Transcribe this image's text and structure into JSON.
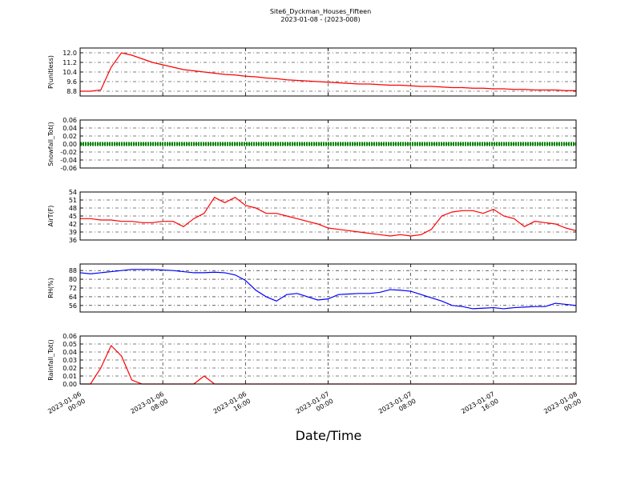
{
  "title": "Site6_Dyckman_Houses_Fifteen",
  "subtitle": "2023-01-08 - (2023-008)",
  "xlabel": "Date/Time",
  "xlim": [
    "2023-01-06 00:00",
    "2023-01-08 00:00"
  ],
  "xticks": [
    "2023-01-06 00:00",
    "2023-01-06 08:00",
    "2023-01-06 16:00",
    "2023-01-07 00:00",
    "2023-01-07 08:00",
    "2023-01-07 16:00",
    "2023-01-08 00:00"
  ],
  "x": [
    "2023-01-06 00:00",
    "2023-01-06 01:00",
    "2023-01-06 02:00",
    "2023-01-06 03:00",
    "2023-01-06 04:00",
    "2023-01-06 05:00",
    "2023-01-06 06:00",
    "2023-01-06 07:00",
    "2023-01-06 08:00",
    "2023-01-06 09:00",
    "2023-01-06 10:00",
    "2023-01-06 11:00",
    "2023-01-06 12:00",
    "2023-01-06 13:00",
    "2023-01-06 14:00",
    "2023-01-06 15:00",
    "2023-01-06 16:00",
    "2023-01-06 17:00",
    "2023-01-06 18:00",
    "2023-01-06 19:00",
    "2023-01-06 20:00",
    "2023-01-06 21:00",
    "2023-01-06 22:00",
    "2023-01-06 23:00",
    "2023-01-07 00:00",
    "2023-01-07 01:00",
    "2023-01-07 02:00",
    "2023-01-07 03:00",
    "2023-01-07 04:00",
    "2023-01-07 05:00",
    "2023-01-07 06:00",
    "2023-01-07 07:00",
    "2023-01-07 08:00",
    "2023-01-07 09:00",
    "2023-01-07 10:00",
    "2023-01-07 11:00",
    "2023-01-07 12:00",
    "2023-01-07 13:00",
    "2023-01-07 14:00",
    "2023-01-07 15:00",
    "2023-01-07 16:00",
    "2023-01-07 17:00",
    "2023-01-07 18:00",
    "2023-01-07 19:00",
    "2023-01-07 20:00",
    "2023-01-07 21:00",
    "2023-01-07 22:00",
    "2023-01-07 23:00",
    "2023-01-08 00:00"
  ],
  "chart_data": [
    {
      "type": "line",
      "ylabel": "P(unitless)",
      "ylim": [
        8.4,
        12.4
      ],
      "yticks": [
        {
          "value": 12,
          "label": "12.0"
        },
        11.2,
        10.4,
        9.6,
        8.8
      ],
      "grid": true,
      "series": [
        {
          "color": "#ff0000",
          "values": [
            8.8,
            8.8,
            8.9,
            10.8,
            12.0,
            11.8,
            11.5,
            11.2,
            11.0,
            10.8,
            10.6,
            10.5,
            10.4,
            10.3,
            10.2,
            10.15,
            10.05,
            10.0,
            9.9,
            9.85,
            9.75,
            9.7,
            9.65,
            9.6,
            9.55,
            9.5,
            9.45,
            9.4,
            9.4,
            9.35,
            9.3,
            9.3,
            9.25,
            9.2,
            9.2,
            9.15,
            9.1,
            9.1,
            9.05,
            9.05,
            9.0,
            9.0,
            8.95,
            8.95,
            8.9,
            8.9,
            8.9,
            8.85,
            8.85
          ]
        }
      ]
    },
    {
      "type": "line",
      "ylabel": "Snowfall_Tot()",
      "ylim": [
        -0.06,
        0.06
      ],
      "yticks": [
        0.06,
        0.04,
        0.02,
        {
          "value": 0,
          "label": "0.00"
        },
        -0.02,
        -0.04,
        -0.06
      ],
      "grid": true,
      "markers": true,
      "series": [
        {
          "color": "#008000",
          "values": [
            0,
            0,
            0,
            0,
            0,
            0,
            0,
            0,
            0,
            0,
            0,
            0,
            0,
            0,
            0,
            0,
            0,
            0,
            0,
            0,
            0,
            0,
            0,
            0,
            0,
            0,
            0,
            0,
            0,
            0,
            0,
            0,
            0,
            0,
            0,
            0,
            0,
            0,
            0,
            0,
            0,
            0,
            0,
            0,
            0,
            0,
            0,
            0,
            0
          ]
        }
      ]
    },
    {
      "type": "line",
      "ylabel": "AirT(F)",
      "ylim": [
        36,
        54
      ],
      "yticks": [
        54,
        51,
        48,
        45,
        42,
        39,
        36
      ],
      "grid": true,
      "series": [
        {
          "color": "#ff0000",
          "values": [
            44,
            44,
            43.5,
            43.5,
            43,
            43,
            42.5,
            42.5,
            43,
            43,
            41,
            44,
            46,
            52,
            50,
            52,
            49,
            48,
            46,
            46,
            45,
            44,
            43,
            42,
            40.5,
            40,
            39.5,
            39,
            38.5,
            38,
            37.5,
            38,
            37.5,
            38,
            40,
            45,
            46.5,
            47,
            47,
            46,
            47.5,
            45,
            44,
            41,
            43,
            42.5,
            42,
            40.5,
            39.5
          ]
        }
      ]
    },
    {
      "type": "line",
      "ylabel": "RH(%)",
      "ylim": [
        50,
        94
      ],
      "yticks": [
        88,
        80,
        72,
        64,
        56
      ],
      "grid": true,
      "series": [
        {
          "color": "#0000ff",
          "values": [
            86,
            85,
            86,
            87,
            88,
            89,
            89,
            89,
            88.5,
            88,
            87,
            86,
            86,
            86.5,
            86,
            84,
            79,
            70,
            64,
            60,
            66,
            67,
            64,
            61,
            62,
            66,
            66.5,
            67,
            67,
            68,
            70.5,
            70,
            69,
            66,
            63,
            60,
            56,
            55,
            53,
            53.5,
            54,
            53,
            54,
            54.5,
            55,
            55,
            58,
            57,
            56
          ]
        }
      ]
    },
    {
      "type": "line",
      "ylabel": "Rainfall_Tot()",
      "ylim": [
        0,
        0.06
      ],
      "yticks": [
        0.06,
        0.05,
        0.04,
        0.03,
        0.02,
        0.01,
        {
          "value": 0,
          "label": "0.00"
        }
      ],
      "grid": true,
      "series": [
        {
          "color": "#ff0000",
          "values": [
            0,
            0,
            0.02,
            0.048,
            0.035,
            0.005,
            0,
            0,
            0,
            0,
            0,
            0,
            0.01,
            0,
            0,
            0,
            0,
            0,
            0,
            0,
            0,
            0,
            0,
            0,
            0,
            0,
            0,
            0,
            0,
            0,
            0,
            0,
            0,
            0,
            0,
            0,
            0,
            0,
            0,
            0,
            0,
            0,
            0,
            0,
            0,
            0,
            0,
            0,
            0
          ]
        }
      ]
    }
  ]
}
